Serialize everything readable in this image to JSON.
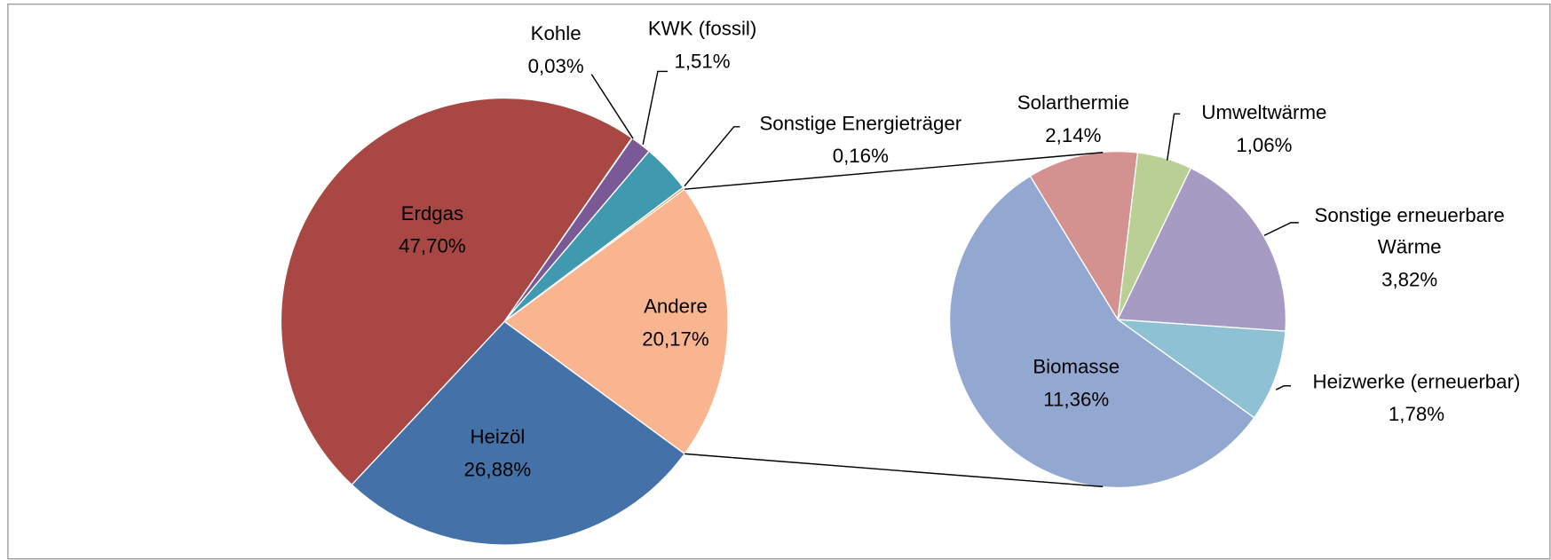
{
  "chart_data": [
    {
      "type": "pie",
      "categories": [
        "Erdgas",
        "Kohle",
        "KWK (fossil)",
        null,
        "Sonstige Energieträger",
        "Andere",
        "Heizöl"
      ],
      "values": [
        47.7,
        0.03,
        1.51,
        3.55,
        0.16,
        20.17,
        26.88
      ],
      "value_labels": [
        "47,70%",
        "0,03%",
        "1,51%",
        null,
        "0,16%",
        "20,17%",
        "26,88%"
      ],
      "colors": [
        "#a84744",
        "#2f2f6e",
        "#7a5a96",
        "#3f9ab0",
        "#f0913c",
        "#f8b58f",
        "#4472a8"
      ]
    },
    {
      "type": "pie",
      "categories": [
        "Solarthermie",
        "Umweltwärme",
        "Sonstige erneuerbare Wärme",
        "Heizwerke (erneuerbar)",
        "Biomasse"
      ],
      "values": [
        2.14,
        1.06,
        3.82,
        1.78,
        11.36
      ],
      "value_labels": [
        "2,14%",
        "1,06%",
        "3,82%",
        "1,78%",
        "11,36%"
      ],
      "colors": [
        "#d3918f",
        "#b9cf94",
        "#a69bc2",
        "#8fc1d4",
        "#93a8d0"
      ]
    }
  ]
}
